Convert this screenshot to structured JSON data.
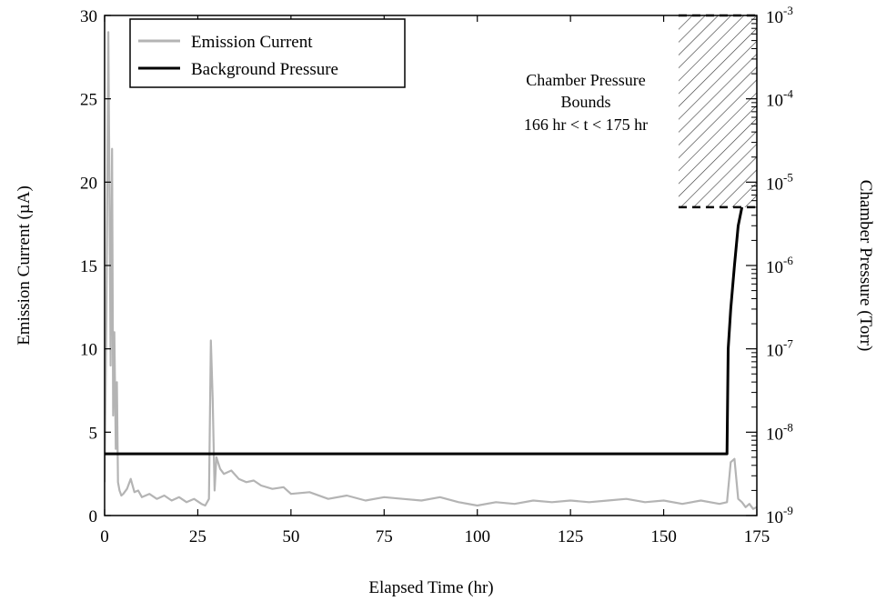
{
  "chart_data": {
    "type": "line",
    "xlabel": "Elapsed Time (hr)",
    "ylabel_left": "Emission Current (µA)",
    "ylabel_right": "Chamber Pressure (Torr)",
    "xlim": [
      0,
      175
    ],
    "ylim_left": [
      0,
      30
    ],
    "ylim_right": [
      1e-09,
      0.001
    ],
    "right_axis_scale": "log",
    "grid": false,
    "legend_position": "top-left",
    "x_ticks": [
      0,
      25,
      50,
      75,
      100,
      125,
      150,
      175
    ],
    "x_tick_labels": [
      "0",
      "25",
      "50",
      "75",
      "100",
      "125",
      "150",
      "175"
    ],
    "y_left_ticks": [
      0,
      5,
      10,
      15,
      20,
      25,
      30
    ],
    "y_left_tick_labels": [
      "0",
      "5",
      "10",
      "15",
      "20",
      "25",
      "30"
    ],
    "y_right_ticks": [
      {
        "exp": -9,
        "base": "10",
        "sup": "-9"
      },
      {
        "exp": -8,
        "base": "10",
        "sup": "-8"
      },
      {
        "exp": -7,
        "base": "10",
        "sup": "-7"
      },
      {
        "exp": -6,
        "base": "10",
        "sup": "-6"
      },
      {
        "exp": -5,
        "base": "10",
        "sup": "-5"
      },
      {
        "exp": -4,
        "base": "10",
        "sup": "-4"
      },
      {
        "exp": -3,
        "base": "10",
        "sup": "-3"
      }
    ],
    "series": [
      {
        "name": "Emission Current",
        "axis": "left",
        "color": "#b4b4b4",
        "x": [
          0,
          0.5,
          1,
          1.3,
          1.6,
          2,
          2.3,
          2.6,
          3,
          3.3,
          3.6,
          4,
          4.5,
          5,
          6,
          7,
          8,
          9,
          10,
          12,
          14,
          16,
          18,
          20,
          22,
          24,
          26,
          27,
          27.5,
          28,
          28.5,
          29,
          29.5,
          30,
          31,
          32,
          34,
          36,
          38,
          40,
          42,
          45,
          48,
          50,
          55,
          60,
          65,
          70,
          75,
          80,
          85,
          90,
          95,
          100,
          105,
          110,
          115,
          120,
          125,
          130,
          135,
          140,
          145,
          150,
          155,
          160,
          165,
          167,
          168,
          169,
          170,
          171,
          172,
          173,
          174,
          175
        ],
        "values": [
          2,
          12,
          29,
          20,
          9,
          22,
          6,
          11,
          4,
          8,
          2,
          1.5,
          1.2,
          1.3,
          1.6,
          2.2,
          1.4,
          1.5,
          1.1,
          1.3,
          1.0,
          1.2,
          0.9,
          1.1,
          0.8,
          1.0,
          0.7,
          0.6,
          0.8,
          1.0,
          10.5,
          7,
          1.5,
          3.5,
          2.8,
          2.5,
          2.7,
          2.2,
          2.0,
          2.1,
          1.8,
          1.6,
          1.7,
          1.3,
          1.4,
          1.0,
          1.2,
          0.9,
          1.1,
          1.0,
          0.9,
          1.1,
          0.8,
          0.6,
          0.8,
          0.7,
          0.9,
          0.8,
          0.9,
          0.8,
          0.9,
          1.0,
          0.8,
          0.9,
          0.7,
          0.9,
          0.7,
          0.8,
          3.2,
          3.4,
          1.0,
          0.8,
          0.5,
          0.7,
          0.4,
          0.5
        ]
      },
      {
        "name": "Background Pressure",
        "axis": "right",
        "color": "#000000",
        "x": [
          0,
          167,
          167.3,
          168,
          169,
          170,
          171
        ],
        "values": [
          5.5e-09,
          5.5e-09,
          1e-07,
          3e-07,
          1e-06,
          3e-06,
          5e-06
        ]
      }
    ],
    "annotations": [
      {
        "lines": [
          "Chamber Pressure",
          "Bounds",
          "166 hr < t < 175 hr"
        ],
        "region": {
          "x": [
            154,
            175
          ],
          "y_right": [
            5e-06,
            0.001
          ]
        },
        "style": "hatched, dashed top and bottom edges"
      }
    ]
  }
}
